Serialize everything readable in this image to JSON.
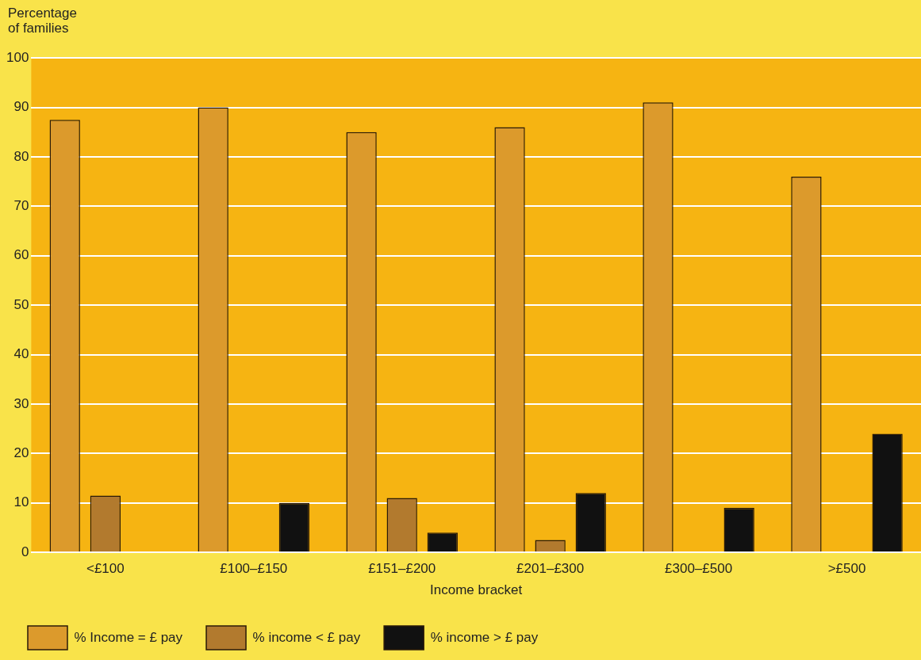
{
  "chart_data": {
    "type": "bar",
    "xlabel": "Income bracket",
    "ylabel": "Percentage\nof families",
    "categories": [
      "<£100",
      "£100–£150",
      "£151–£200",
      "£201–£300",
      "£300–£500",
      ">£500"
    ],
    "series": [
      {
        "name": "% Income = £ pay",
        "color": "#dc9a2c",
        "values": [
          87.5,
          90,
          85,
          86,
          91,
          76
        ]
      },
      {
        "name": "% income < £ pay",
        "color": "#b27a2e",
        "values": [
          11.5,
          null,
          11,
          2.5,
          null,
          null
        ]
      },
      {
        "name": "% income > £ pay",
        "color": "#111111",
        "values": [
          null,
          10,
          4,
          12,
          9,
          24
        ]
      }
    ],
    "ylim": [
      0,
      100
    ],
    "yticks": [
      0,
      10,
      20,
      30,
      40,
      50,
      60,
      70,
      80,
      90,
      100
    ],
    "grid": "y",
    "legend": "bottom"
  }
}
